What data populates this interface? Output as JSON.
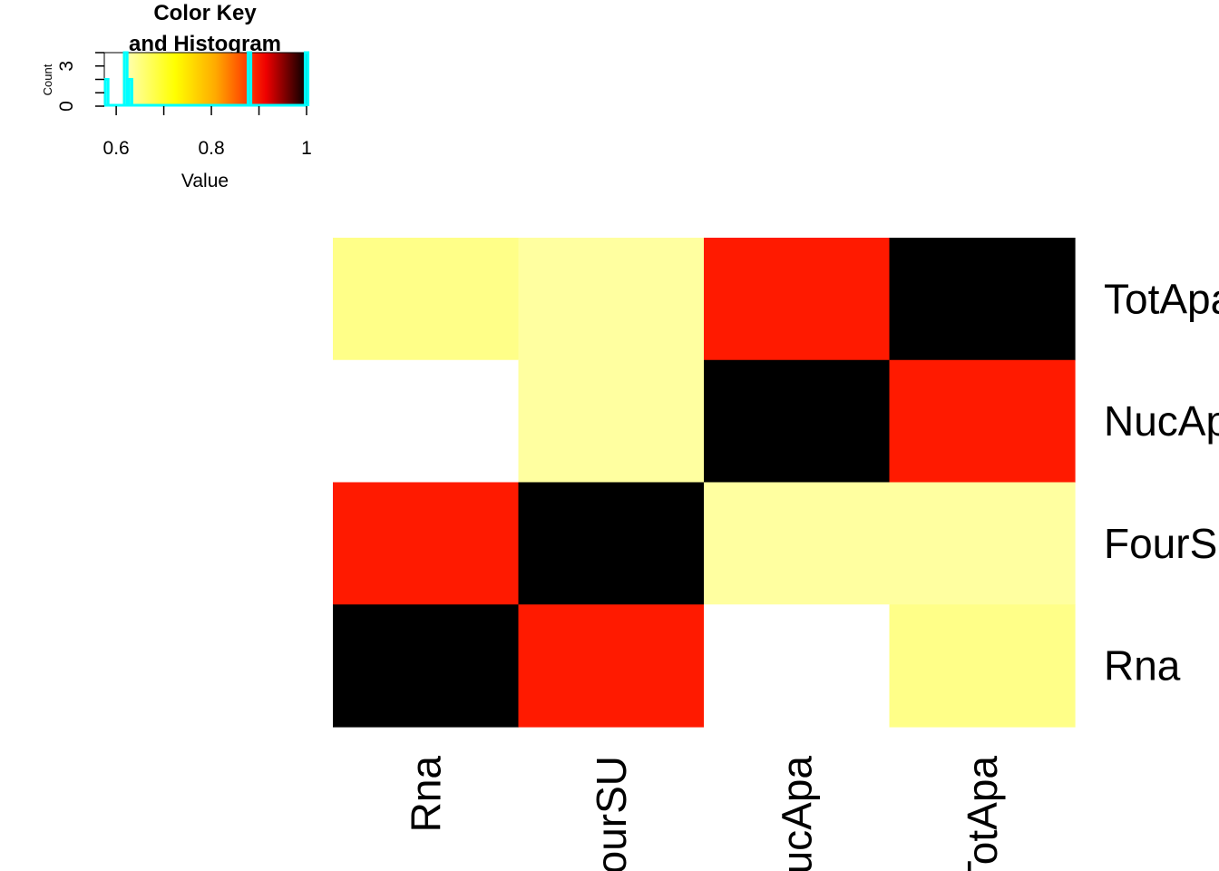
{
  "chart_data": {
    "type": "heatmap",
    "rows": [
      "TotApa",
      "NucApa",
      "FourSU",
      "Rna"
    ],
    "columns": [
      "Rna",
      "FourSU",
      "NucApa",
      "TotApa"
    ],
    "values": [
      [
        0.62,
        0.6,
        0.88,
        1.0
      ],
      [
        0.58,
        0.6,
        1.0,
        0.88
      ],
      [
        0.88,
        1.0,
        0.6,
        0.6
      ],
      [
        1.0,
        0.88,
        0.58,
        0.62
      ]
    ],
    "color_key": {
      "title_line1": "Color Key",
      "title_line2": "and Histogram",
      "xlabel": "Value",
      "ylabel": "Count",
      "x_ticks": [
        "0.6",
        "0.8",
        "1"
      ],
      "y_ticks": [
        "0",
        "3"
      ],
      "x_range": [
        0.575,
        1.0
      ],
      "y_range": [
        0,
        4
      ],
      "histogram_counts": [
        {
          "value": 0.58,
          "count": 2
        },
        {
          "value": 0.62,
          "count": 4
        },
        {
          "value": 0.63,
          "count": 2
        },
        {
          "value": 0.88,
          "count": 4
        },
        {
          "value": 1.0,
          "count": 4
        }
      ],
      "palette": [
        "#ffffff",
        "#ffff80",
        "#ffff00",
        "#ff8000",
        "#ff0000",
        "#000000"
      ],
      "histogram_color": "#00ffff"
    }
  }
}
